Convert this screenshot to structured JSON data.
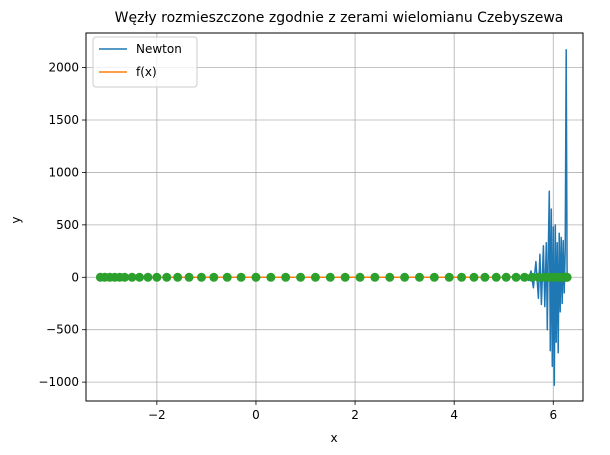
{
  "chart_data": {
    "type": "line",
    "title": "Węzły rozmieszczone zgodnie z zerami wielomianu Czebyszewa",
    "xlabel": "x",
    "ylabel": "y",
    "xlim": [
      -3.43,
      6.6
    ],
    "ylim": [
      -1180,
      2330
    ],
    "xticks": [
      -2,
      0,
      2,
      4,
      6
    ],
    "xtick_labels": [
      "−2",
      "0",
      "2",
      "4",
      "6"
    ],
    "yticks": [
      -1000,
      -500,
      0,
      500,
      1000,
      1500,
      2000
    ],
    "ytick_labels": [
      "−1000",
      "−500",
      "0",
      "500",
      "1000",
      "1500",
      "2000"
    ],
    "grid": true,
    "legend_position": "top-left",
    "colors": {
      "newton": "#1f77b4",
      "fx": "#ff7f0e",
      "nodes": "#2ca02c",
      "grid": "#b0b0b0"
    },
    "series": [
      {
        "name": "Newton",
        "x": [
          -3.14,
          5.0,
          5.2,
          5.35,
          5.45,
          5.5,
          5.55,
          5.6,
          5.65,
          5.7,
          5.73,
          5.76,
          5.8,
          5.83,
          5.86,
          5.88,
          5.9,
          5.92,
          5.94,
          5.96,
          5.98,
          6.0,
          6.02,
          6.04,
          6.06,
          6.08,
          6.1,
          6.12,
          6.14,
          6.16,
          6.18,
          6.2,
          6.22,
          6.24,
          6.26,
          6.28
        ],
        "y": [
          0,
          0,
          5,
          -10,
          20,
          -30,
          60,
          -100,
          150,
          -200,
          220,
          -260,
          300,
          -280,
          330,
          -500,
          250,
          820,
          -700,
          650,
          -850,
          480,
          -1030,
          500,
          -620,
          330,
          -720,
          420,
          -330,
          380,
          -250,
          350,
          -150,
          250,
          2170,
          0
        ]
      },
      {
        "name": "f(x)",
        "x": [
          -3.14,
          6.28
        ],
        "y": [
          0,
          0
        ]
      }
    ],
    "nodes": {
      "x": [
        -3.14,
        -3.05,
        -2.95,
        -2.85,
        -2.75,
        -2.65,
        -2.5,
        -2.35,
        -2.18,
        -2.0,
        -1.8,
        -1.58,
        -1.35,
        -1.1,
        -0.85,
        -0.58,
        -0.3,
        0.0,
        0.3,
        0.6,
        0.9,
        1.2,
        1.5,
        1.8,
        2.1,
        2.4,
        2.7,
        3.0,
        3.3,
        3.6,
        3.9,
        4.15,
        4.4,
        4.62,
        4.85,
        5.05,
        5.25,
        5.42,
        5.57,
        5.7,
        5.82,
        5.92,
        6.0,
        6.07,
        6.13,
        6.18,
        6.22,
        6.25,
        6.27,
        6.28
      ],
      "y": [
        0,
        0,
        0,
        0,
        0,
        0,
        0,
        0,
        0,
        0,
        0,
        0,
        0,
        0,
        0,
        0,
        0,
        0,
        0,
        0,
        0,
        0,
        0,
        0,
        0,
        0,
        0,
        0,
        0,
        0,
        0,
        0,
        0,
        0,
        0,
        0,
        0,
        0,
        0,
        0,
        0,
        0,
        0,
        0,
        0,
        0,
        0,
        0,
        0,
        0
      ]
    }
  }
}
